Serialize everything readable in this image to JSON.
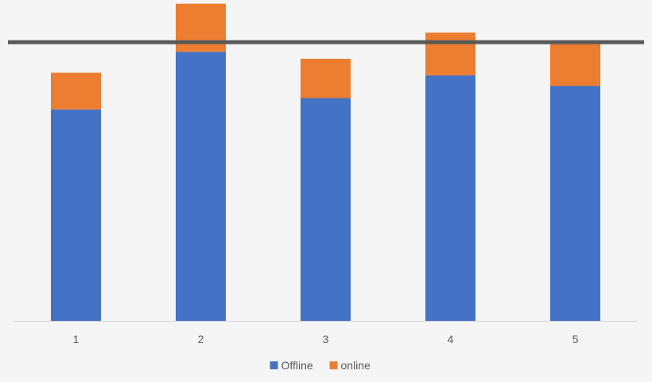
{
  "chart_data": {
    "type": "bar",
    "stacked": true,
    "categories": [
      "1",
      "2",
      "3",
      "4",
      "5"
    ],
    "series": [
      {
        "name": "Offline",
        "values": [
          242,
          308,
          255,
          281,
          269
        ],
        "color": "#4472c4"
      },
      {
        "name": "online",
        "values": [
          42,
          55,
          45,
          49,
          48
        ],
        "color": "#ed7d31"
      }
    ],
    "reference_line": {
      "value": 319,
      "color": "#595959"
    },
    "ylim": [
      0,
      364
    ],
    "grid": false,
    "legend": {
      "position": "bottom"
    },
    "title": "",
    "xlabel": "",
    "ylabel": ""
  }
}
